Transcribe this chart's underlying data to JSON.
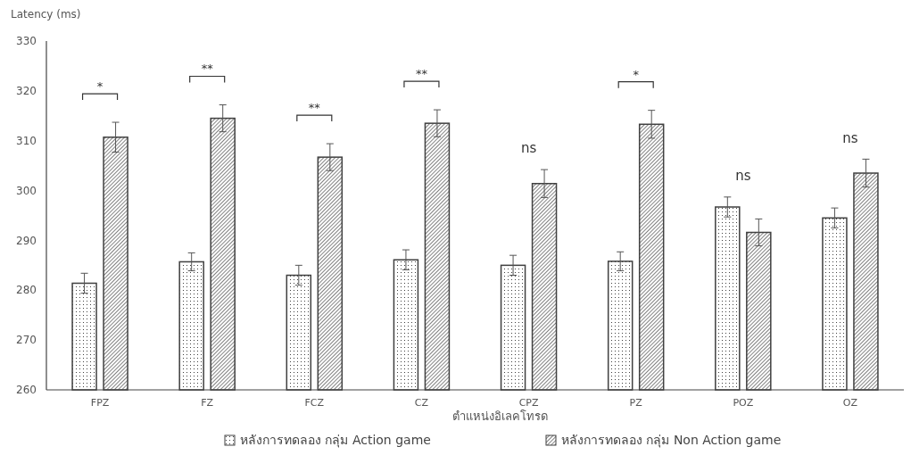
{
  "chart_data": {
    "type": "bar",
    "ylabel": "Latency (ms)",
    "xlabel": "ตำแหน่งอิเลคโทรด",
    "categories": [
      "FPZ",
      "FZ",
      "FCZ",
      "CZ",
      "CPZ",
      "PZ",
      "POZ",
      "OZ"
    ],
    "series": [
      {
        "name": "หลังการทดลอง กลุ่ม Action game",
        "color": "#404040",
        "values": [
          281.4,
          285.7,
          283.0,
          286.1,
          285.0,
          285.8,
          296.7,
          294.5
        ],
        "errors": [
          2.0,
          1.8,
          2.0,
          2.0,
          2.0,
          1.9,
          2.0,
          2.0
        ]
      },
      {
        "name": "หลังการทดลอง กลุ่ม Non Action game",
        "color": "#404040",
        "values": [
          310.7,
          314.5,
          306.7,
          313.5,
          301.4,
          313.3,
          291.6,
          303.5
        ],
        "errors": [
          3.0,
          2.7,
          2.7,
          2.7,
          2.8,
          2.8,
          2.7,
          2.8
        ]
      }
    ],
    "ylim": [
      260,
      330
    ],
    "yticks": [
      260,
      270,
      280,
      290,
      300,
      310,
      320,
      330
    ],
    "grid": false,
    "legend": "bottom",
    "annotations": [
      "*",
      "**",
      "**",
      "**",
      "ns",
      "*",
      "ns",
      "ns"
    ]
  }
}
